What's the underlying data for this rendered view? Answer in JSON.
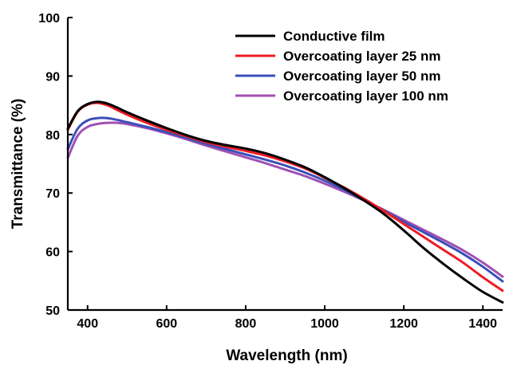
{
  "chart_data": {
    "type": "line",
    "title": "",
    "xlabel": "Wavelength (nm)",
    "ylabel": "Transmittance (%)",
    "xlim": [
      350,
      1450
    ],
    "ylim": [
      50,
      100
    ],
    "xticks": [
      400,
      600,
      800,
      1000,
      1200,
      1400
    ],
    "yticks": [
      50,
      60,
      70,
      80,
      90,
      100
    ],
    "grid": false,
    "legend_placement": "top-right",
    "series": [
      {
        "name": "Conductive film",
        "color": "#000000",
        "x": [
          350,
          375,
          400,
          425,
          450,
          475,
          500,
          550,
          600,
          650,
          700,
          750,
          800,
          850,
          900,
          950,
          1000,
          1050,
          1100,
          1150,
          1200,
          1250,
          1300,
          1350,
          1400,
          1450
        ],
        "y": [
          81.0,
          84.0,
          85.2,
          85.6,
          85.3,
          84.6,
          83.8,
          82.4,
          81.1,
          79.9,
          78.9,
          78.2,
          77.6,
          76.8,
          75.7,
          74.4,
          72.7,
          70.8,
          68.7,
          66.4,
          63.6,
          60.6,
          57.9,
          55.4,
          53.1,
          51.3
        ]
      },
      {
        "name": "Overcoating layer 25 nm",
        "color": "#ee1c24",
        "x": [
          350,
          375,
          400,
          425,
          450,
          475,
          500,
          550,
          600,
          650,
          700,
          750,
          800,
          850,
          900,
          950,
          1000,
          1050,
          1100,
          1150,
          1200,
          1250,
          1300,
          1350,
          1400,
          1450
        ],
        "y": [
          80.8,
          83.9,
          85.1,
          85.4,
          85.0,
          84.2,
          83.4,
          82.0,
          80.8,
          79.7,
          78.7,
          77.9,
          77.2,
          76.4,
          75.4,
          74.2,
          72.6,
          70.9,
          69.0,
          66.9,
          64.7,
          62.5,
          60.3,
          58.1,
          55.6,
          53.3
        ]
      },
      {
        "name": "Overcoating layer 50 nm",
        "color": "#3b4fb8",
        "x": [
          350,
          375,
          400,
          425,
          450,
          475,
          500,
          550,
          600,
          650,
          700,
          750,
          800,
          850,
          900,
          950,
          1000,
          1050,
          1100,
          1150,
          1200,
          1250,
          1300,
          1350,
          1400,
          1450
        ],
        "y": [
          77.5,
          81.0,
          82.4,
          82.8,
          82.8,
          82.5,
          82.1,
          81.3,
          80.4,
          79.4,
          78.4,
          77.5,
          76.6,
          75.7,
          74.7,
          73.5,
          72.1,
          70.5,
          68.8,
          67.0,
          65.1,
          63.3,
          61.5,
          59.6,
          57.4,
          54.9
        ]
      },
      {
        "name": "Overcoating layer 100 nm",
        "color": "#a050b4",
        "x": [
          350,
          375,
          400,
          425,
          450,
          475,
          500,
          550,
          600,
          650,
          700,
          750,
          800,
          850,
          900,
          950,
          1000,
          1050,
          1100,
          1150,
          1200,
          1250,
          1300,
          1350,
          1400,
          1450
        ],
        "y": [
          76.0,
          79.8,
          81.3,
          81.8,
          82.0,
          82.0,
          81.8,
          81.1,
          80.2,
          79.2,
          78.1,
          77.1,
          76.1,
          75.1,
          74.0,
          72.9,
          71.6,
          70.2,
          68.7,
          67.1,
          65.4,
          63.7,
          62.0,
          60.2,
          58.1,
          55.7
        ]
      }
    ]
  }
}
